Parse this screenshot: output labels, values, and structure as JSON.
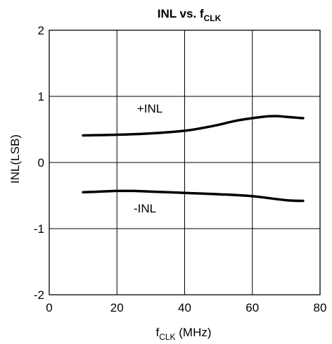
{
  "chart_data": {
    "type": "line",
    "title": {
      "main": "INL vs. f",
      "sub": "CLK"
    },
    "xlabel": {
      "main": "f",
      "sub": "CLK",
      "rest": " (MHz)"
    },
    "ylabel": "INL(LSB)",
    "xlim": [
      0,
      80
    ],
    "ylim": [
      -2,
      2
    ],
    "x_ticks": [
      "0",
      "20",
      "40",
      "60",
      "80"
    ],
    "y_ticks": [
      "2",
      "1",
      "0",
      "-1",
      "-2"
    ],
    "grid": true,
    "series": [
      {
        "name": "+INL",
        "x": [
          10,
          20,
          30,
          40,
          45,
          50,
          55,
          60,
          65,
          68,
          70,
          75
        ],
        "y": [
          0.41,
          0.42,
          0.44,
          0.48,
          0.52,
          0.57,
          0.63,
          0.67,
          0.7,
          0.7,
          0.69,
          0.67
        ]
      },
      {
        "name": "-INL",
        "x": [
          10,
          15,
          20,
          25,
          30,
          40,
          50,
          60,
          70,
          75
        ],
        "y": [
          -0.45,
          -0.44,
          -0.43,
          -0.43,
          -0.44,
          -0.46,
          -0.48,
          -0.51,
          -0.57,
          -0.58
        ]
      }
    ],
    "annotations": [
      "+INL",
      "-INL"
    ]
  }
}
